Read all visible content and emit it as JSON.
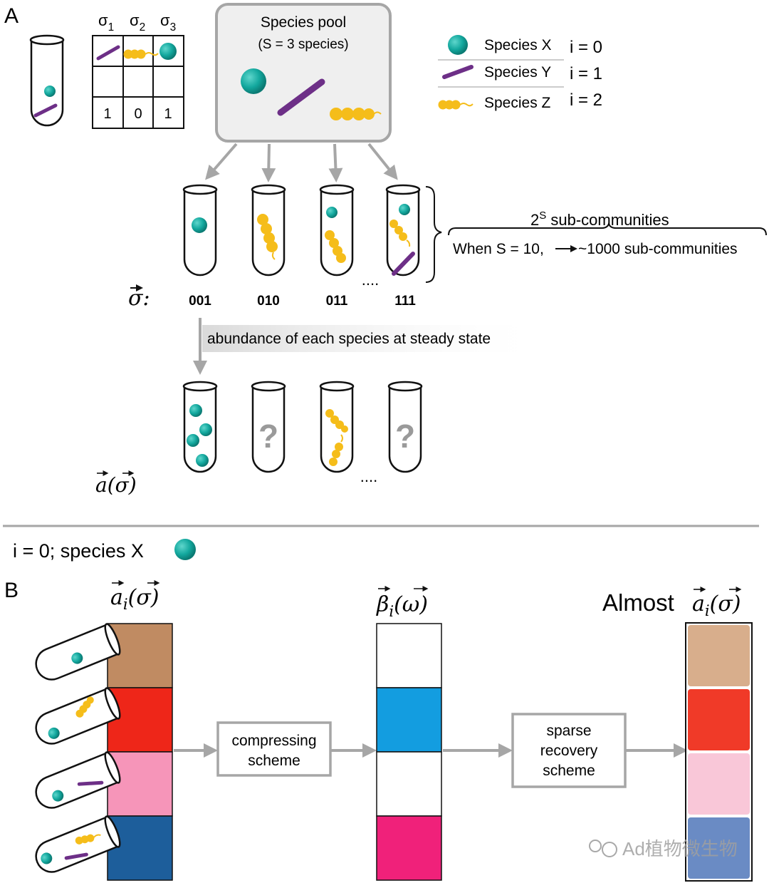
{
  "panel_a": {
    "letter": "A",
    "sigma_header": [
      "σ1",
      "σ2",
      "σ3"
    ],
    "sigma_row": [
      "1",
      "0",
      "1"
    ],
    "pool_title": "Species pool",
    "pool_subtitle": "(S = 3 species)",
    "legend": [
      {
        "name": "Species X",
        "index": "i = 0"
      },
      {
        "name": "Species Y",
        "index": "i = 1"
      },
      {
        "name": "Species Z",
        "index": "i = 2"
      }
    ],
    "subcomm_label": "2S sub-communities",
    "subcomm_sup": "S",
    "subcomm_text": " sub-communities",
    "subcomm_base": "2",
    "when_text": "When S = 10,",
    "arrow_text": "~1000 sub-communities",
    "sigma_vec_label": "σ:",
    "codes": [
      "001",
      "010",
      "011",
      "111"
    ],
    "dots": "....",
    "steady_state": "abundance of each species at steady state",
    "question": "?",
    "a_sigma_label": "a(σ)"
  },
  "separator": {
    "species_label": "i = 0; species X"
  },
  "panel_b": {
    "letter": "B",
    "ai_label": "ai(σ)",
    "beta_label": "βi(ω)",
    "almost": "Almost",
    "almost_ai": "ai(σ)",
    "compress_l1": "compressing",
    "compress_l2": "scheme",
    "sparse_l1": "sparse",
    "sparse_l2": "recovery",
    "sparse_l3": "scheme",
    "watermark": "Ad植物微生物",
    "colors_ai": [
      "#c08b62",
      "#ee2619",
      "#f695b9",
      "#1d5e9b"
    ],
    "colors_beta": [
      "#ffffff",
      "#139de0",
      "#ffffff",
      "#f0217a"
    ],
    "colors_almost": [
      "#d8ae8c",
      "#f03a28",
      "#f9c7d8",
      "#6a8bc4"
    ]
  },
  "colors": {
    "teal": "#13a89e",
    "purple": "#6d2f87",
    "yellow": "#f5bd1a",
    "arrow": "#a6a6a6"
  }
}
